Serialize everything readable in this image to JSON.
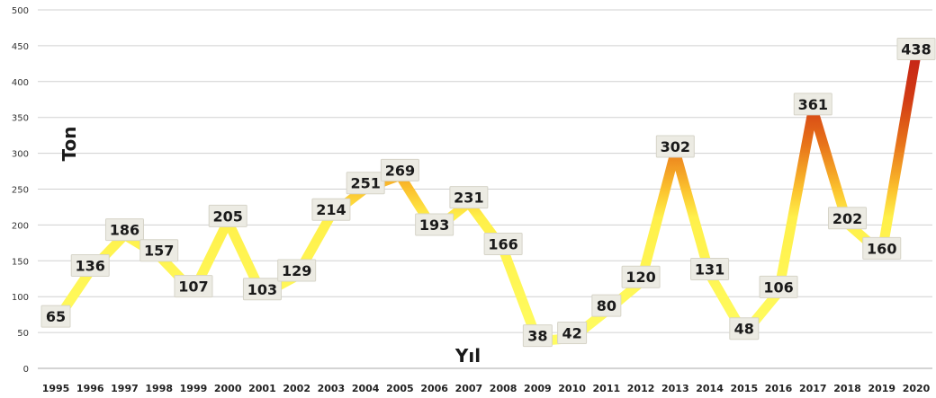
{
  "chart_data": {
    "type": "line",
    "ylabel": "Ton",
    "xlabel": "Yıl",
    "ylim": [
      0,
      500
    ],
    "yticks": [
      "0",
      "50",
      "100",
      "150",
      "200",
      "250",
      "300",
      "350",
      "400",
      "450",
      "500"
    ],
    "grid": true,
    "categories": [
      "1995",
      "1996",
      "1997",
      "1998",
      "1999",
      "2000",
      "2001",
      "2002",
      "2003",
      "2004",
      "2005",
      "2006",
      "2007",
      "2008",
      "2009",
      "2010",
      "2011",
      "2012",
      "2013",
      "2014",
      "2015",
      "2016",
      "2017",
      "2018",
      "2019",
      "2020"
    ],
    "values": [
      65,
      136,
      186,
      157,
      107,
      205,
      103,
      129,
      214,
      251,
      269,
      193,
      231,
      166,
      38,
      42,
      80,
      120,
      302,
      131,
      48,
      106,
      361,
      202,
      160,
      438
    ],
    "colors": {
      "low": "#ffff66",
      "mid": "#fbc02d",
      "high": "#e06a10",
      "top": "#c8161b",
      "grid": "#d0d0d0",
      "label_bg": "#ecebe3"
    }
  }
}
